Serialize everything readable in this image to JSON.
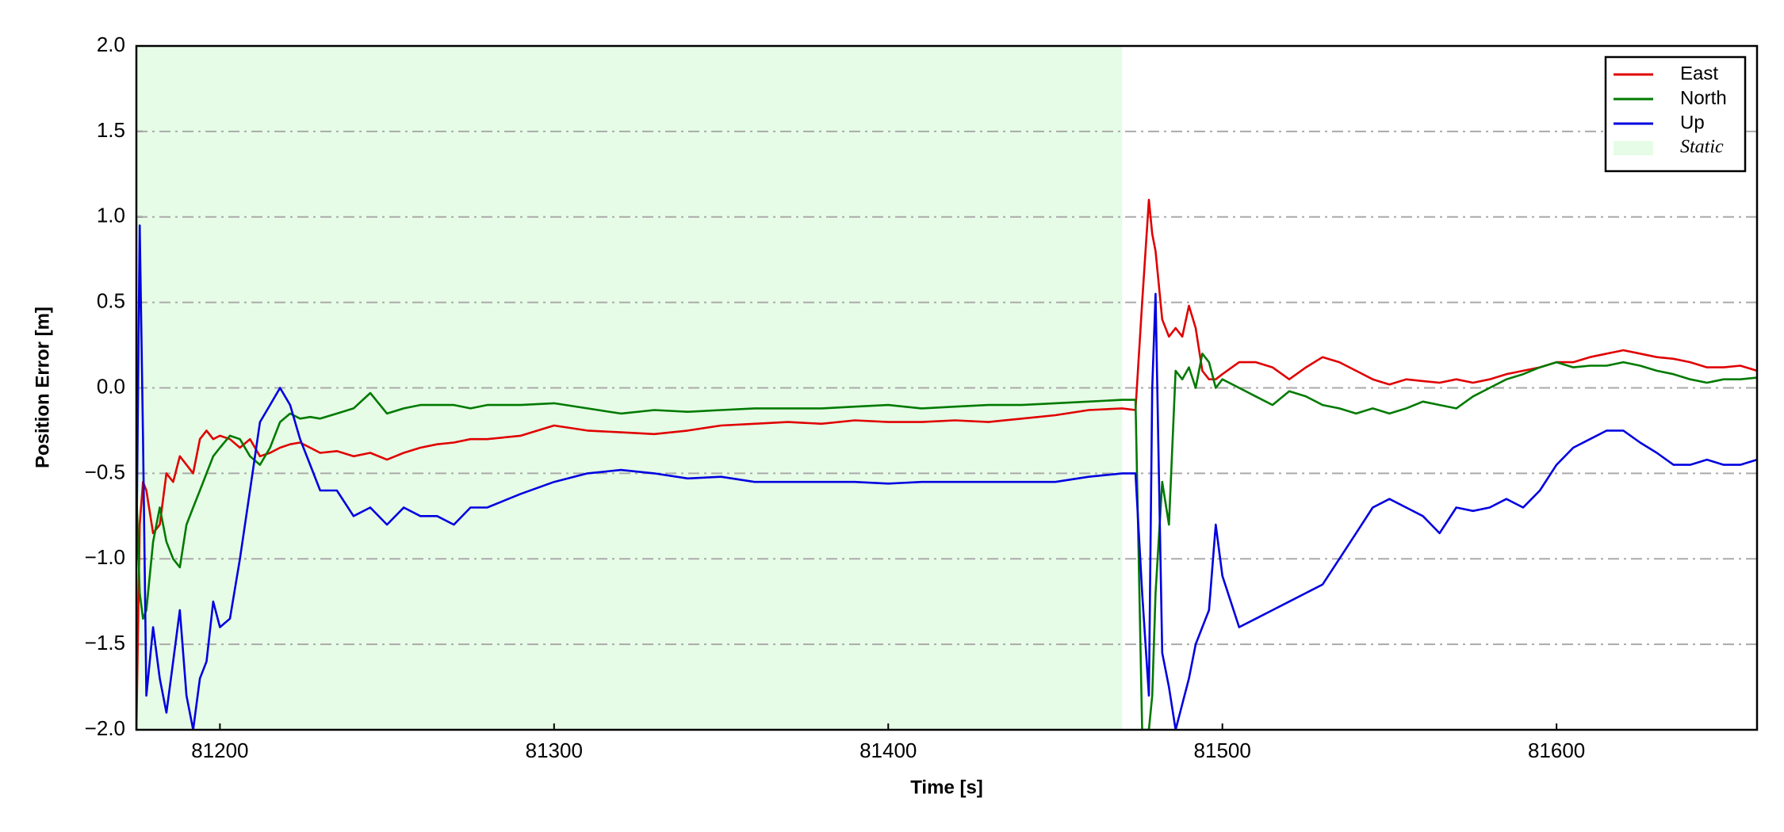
{
  "chart_data": {
    "type": "line",
    "xlabel": "Time [s]",
    "ylabel": "Position Error [m]",
    "x": [
      81175,
      81176,
      81177,
      81178,
      81180,
      81182,
      81184,
      81186,
      81188,
      81190,
      81192,
      81194,
      81196,
      81198,
      81200,
      81203,
      81206,
      81209,
      81212,
      81215,
      81218,
      81221,
      81224,
      81227,
      81230,
      81235,
      81240,
      81245,
      81250,
      81255,
      81260,
      81265,
      81270,
      81275,
      81280,
      81290,
      81300,
      81310,
      81320,
      81330,
      81340,
      81350,
      81360,
      81370,
      81380,
      81390,
      81400,
      81410,
      81420,
      81430,
      81440,
      81450,
      81460,
      81470,
      81474,
      81476,
      81478,
      81479,
      81480,
      81482,
      81484,
      81486,
      81488,
      81490,
      81492,
      81494,
      81496,
      81498,
      81500,
      81505,
      81510,
      81515,
      81520,
      81525,
      81530,
      81535,
      81540,
      81545,
      81550,
      81555,
      81560,
      81565,
      81570,
      81575,
      81580,
      81585,
      81590,
      81595,
      81600,
      81605,
      81610,
      81615,
      81620,
      81625,
      81630,
      81635,
      81640,
      81645,
      81650,
      81655,
      81660
    ],
    "series": [
      {
        "name": "East",
        "color": "#e00000",
        "values": [
          -2.0,
          -0.8,
          -0.55,
          -0.6,
          -0.85,
          -0.8,
          -0.5,
          -0.55,
          -0.4,
          -0.45,
          -0.5,
          -0.3,
          -0.25,
          -0.3,
          -0.28,
          -0.3,
          -0.35,
          -0.3,
          -0.4,
          -0.38,
          -0.35,
          -0.33,
          -0.32,
          -0.35,
          -0.38,
          -0.37,
          -0.4,
          -0.38,
          -0.42,
          -0.38,
          -0.35,
          -0.33,
          -0.32,
          -0.3,
          -0.3,
          -0.28,
          -0.22,
          -0.25,
          -0.26,
          -0.27,
          -0.25,
          -0.22,
          -0.21,
          -0.2,
          -0.21,
          -0.19,
          -0.2,
          -0.2,
          -0.19,
          -0.2,
          -0.18,
          -0.16,
          -0.13,
          -0.12,
          -0.13,
          0.5,
          1.1,
          0.9,
          0.8,
          0.4,
          0.3,
          0.35,
          0.3,
          0.48,
          0.35,
          0.1,
          0.05,
          0.05,
          0.08,
          0.15,
          0.15,
          0.12,
          0.05,
          0.12,
          0.18,
          0.15,
          0.1,
          0.05,
          0.02,
          0.05,
          0.04,
          0.03,
          0.05,
          0.03,
          0.05,
          0.08,
          0.1,
          0.12,
          0.15,
          0.15,
          0.18,
          0.2,
          0.22,
          0.2,
          0.18,
          0.17,
          0.15,
          0.12,
          0.12,
          0.13,
          0.1
        ]
      },
      {
        "name": "North",
        "color": "#007a00",
        "values": [
          -0.6,
          -1.2,
          -1.35,
          -1.3,
          -0.9,
          -0.7,
          -0.9,
          -1.0,
          -1.05,
          -0.8,
          -0.7,
          -0.6,
          -0.5,
          -0.4,
          -0.35,
          -0.28,
          -0.3,
          -0.4,
          -0.45,
          -0.35,
          -0.2,
          -0.15,
          -0.18,
          -0.17,
          -0.18,
          -0.15,
          -0.12,
          -0.03,
          -0.15,
          -0.12,
          -0.1,
          -0.1,
          -0.1,
          -0.12,
          -0.1,
          -0.1,
          -0.09,
          -0.12,
          -0.15,
          -0.13,
          -0.14,
          -0.13,
          -0.12,
          -0.12,
          -0.12,
          -0.11,
          -0.1,
          -0.12,
          -0.11,
          -0.1,
          -0.1,
          -0.09,
          -0.08,
          -0.07,
          -0.07,
          -2.0,
          -2.0,
          -1.8,
          -1.2,
          -0.55,
          -0.8,
          0.1,
          0.05,
          0.12,
          0.0,
          0.2,
          0.15,
          0.0,
          0.05,
          0.0,
          -0.05,
          -0.1,
          -0.02,
          -0.05,
          -0.1,
          -0.12,
          -0.15,
          -0.12,
          -0.15,
          -0.12,
          -0.08,
          -0.1,
          -0.12,
          -0.05,
          0.0,
          0.05,
          0.08,
          0.12,
          0.15,
          0.12,
          0.13,
          0.13,
          0.15,
          0.13,
          0.1,
          0.08,
          0.05,
          0.03,
          0.05,
          0.05,
          0.06
        ]
      },
      {
        "name": "Up",
        "color": "#0000e0",
        "values": [
          -1.0,
          0.95,
          -0.3,
          -1.8,
          -1.4,
          -1.7,
          -1.9,
          -1.6,
          -1.3,
          -1.8,
          -2.0,
          -1.7,
          -1.6,
          -1.25,
          -1.4,
          -1.35,
          -1.0,
          -0.6,
          -0.2,
          -0.1,
          0.0,
          -0.1,
          -0.3,
          -0.45,
          -0.6,
          -0.6,
          -0.75,
          -0.7,
          -0.8,
          -0.7,
          -0.75,
          -0.75,
          -0.8,
          -0.7,
          -0.7,
          -0.62,
          -0.55,
          -0.5,
          -0.48,
          -0.5,
          -0.53,
          -0.52,
          -0.55,
          -0.55,
          -0.55,
          -0.55,
          -0.56,
          -0.55,
          -0.55,
          -0.55,
          -0.55,
          -0.55,
          -0.52,
          -0.5,
          -0.5,
          -1.2,
          -1.8,
          0.0,
          0.55,
          -1.55,
          -1.75,
          -2.0,
          -1.85,
          -1.7,
          -1.5,
          -1.4,
          -1.3,
          -0.8,
          -1.1,
          -1.4,
          -1.35,
          -1.3,
          -1.25,
          -1.2,
          -1.15,
          -1.0,
          -0.85,
          -0.7,
          -0.65,
          -0.7,
          -0.75,
          -0.85,
          -0.7,
          -0.72,
          -0.7,
          -0.65,
          -0.7,
          -0.6,
          -0.45,
          -0.35,
          -0.3,
          -0.25,
          -0.25,
          -0.32,
          -0.38,
          -0.45,
          -0.45,
          -0.42,
          -0.45,
          -0.45,
          -0.42
        ]
      }
    ],
    "shaded_region": {
      "name": "Static",
      "x": [
        81175,
        81470
      ],
      "color": "#e6fce6"
    },
    "xlim": [
      81175,
      81660
    ],
    "xticks": [
      81200,
      81300,
      81400,
      81500,
      81600
    ],
    "ylim": [
      -2.0,
      2.0
    ],
    "yticks": [
      {
        "value": -2.0,
        "label": "−2.0"
      },
      {
        "value": -1.5,
        "label": "−1.5"
      },
      {
        "value": -1.0,
        "label": "−1.0"
      },
      {
        "value": -0.5,
        "label": "−0.5"
      },
      {
        "value": 0.0,
        "label": "0.0"
      },
      {
        "value": 0.5,
        "label": "0.5"
      },
      {
        "value": 1.0,
        "label": "1.0"
      },
      {
        "value": 1.5,
        "label": "1.5"
      },
      {
        "value": 2.0,
        "label": "2.0"
      }
    ],
    "grid": true,
    "legend": "upper right"
  }
}
